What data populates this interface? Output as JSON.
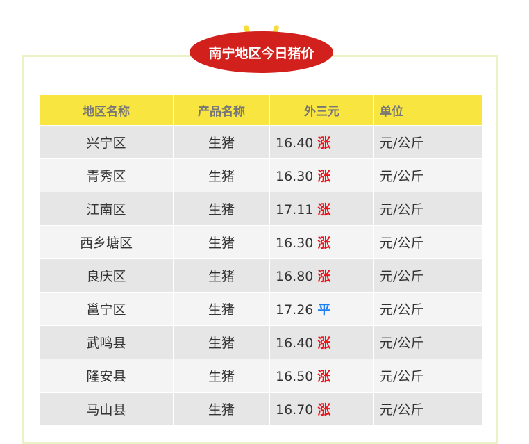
{
  "title": "南宁地区今日猪价",
  "colors": {
    "up": "#e8141b",
    "flat": "#1a7ef5",
    "header_bg": "#f9e53f",
    "badge_bg": "#d2201c"
  },
  "columns": [
    "地区名称",
    "产品名称",
    "外三元",
    "单位"
  ],
  "rows": [
    {
      "region": "兴宁区",
      "product": "生猪",
      "price": "16.40",
      "trend": "涨",
      "unit": "元/公斤"
    },
    {
      "region": "青秀区",
      "product": "生猪",
      "price": "16.30",
      "trend": "涨",
      "unit": "元/公斤"
    },
    {
      "region": "江南区",
      "product": "生猪",
      "price": "17.11",
      "trend": "涨",
      "unit": "元/公斤"
    },
    {
      "region": "西乡塘区",
      "product": "生猪",
      "price": "16.30",
      "trend": "涨",
      "unit": "元/公斤"
    },
    {
      "region": "良庆区",
      "product": "生猪",
      "price": "16.80",
      "trend": "涨",
      "unit": "元/公斤"
    },
    {
      "region": "邕宁区",
      "product": "生猪",
      "price": "17.26",
      "trend": "平",
      "unit": "元/公斤"
    },
    {
      "region": "武鸣县",
      "product": "生猪",
      "price": "16.40",
      "trend": "涨",
      "unit": "元/公斤"
    },
    {
      "region": "隆安县",
      "product": "生猪",
      "price": "16.50",
      "trend": "涨",
      "unit": "元/公斤"
    },
    {
      "region": "马山县",
      "product": "生猪",
      "price": "16.70",
      "trend": "涨",
      "unit": "元/公斤"
    }
  ]
}
